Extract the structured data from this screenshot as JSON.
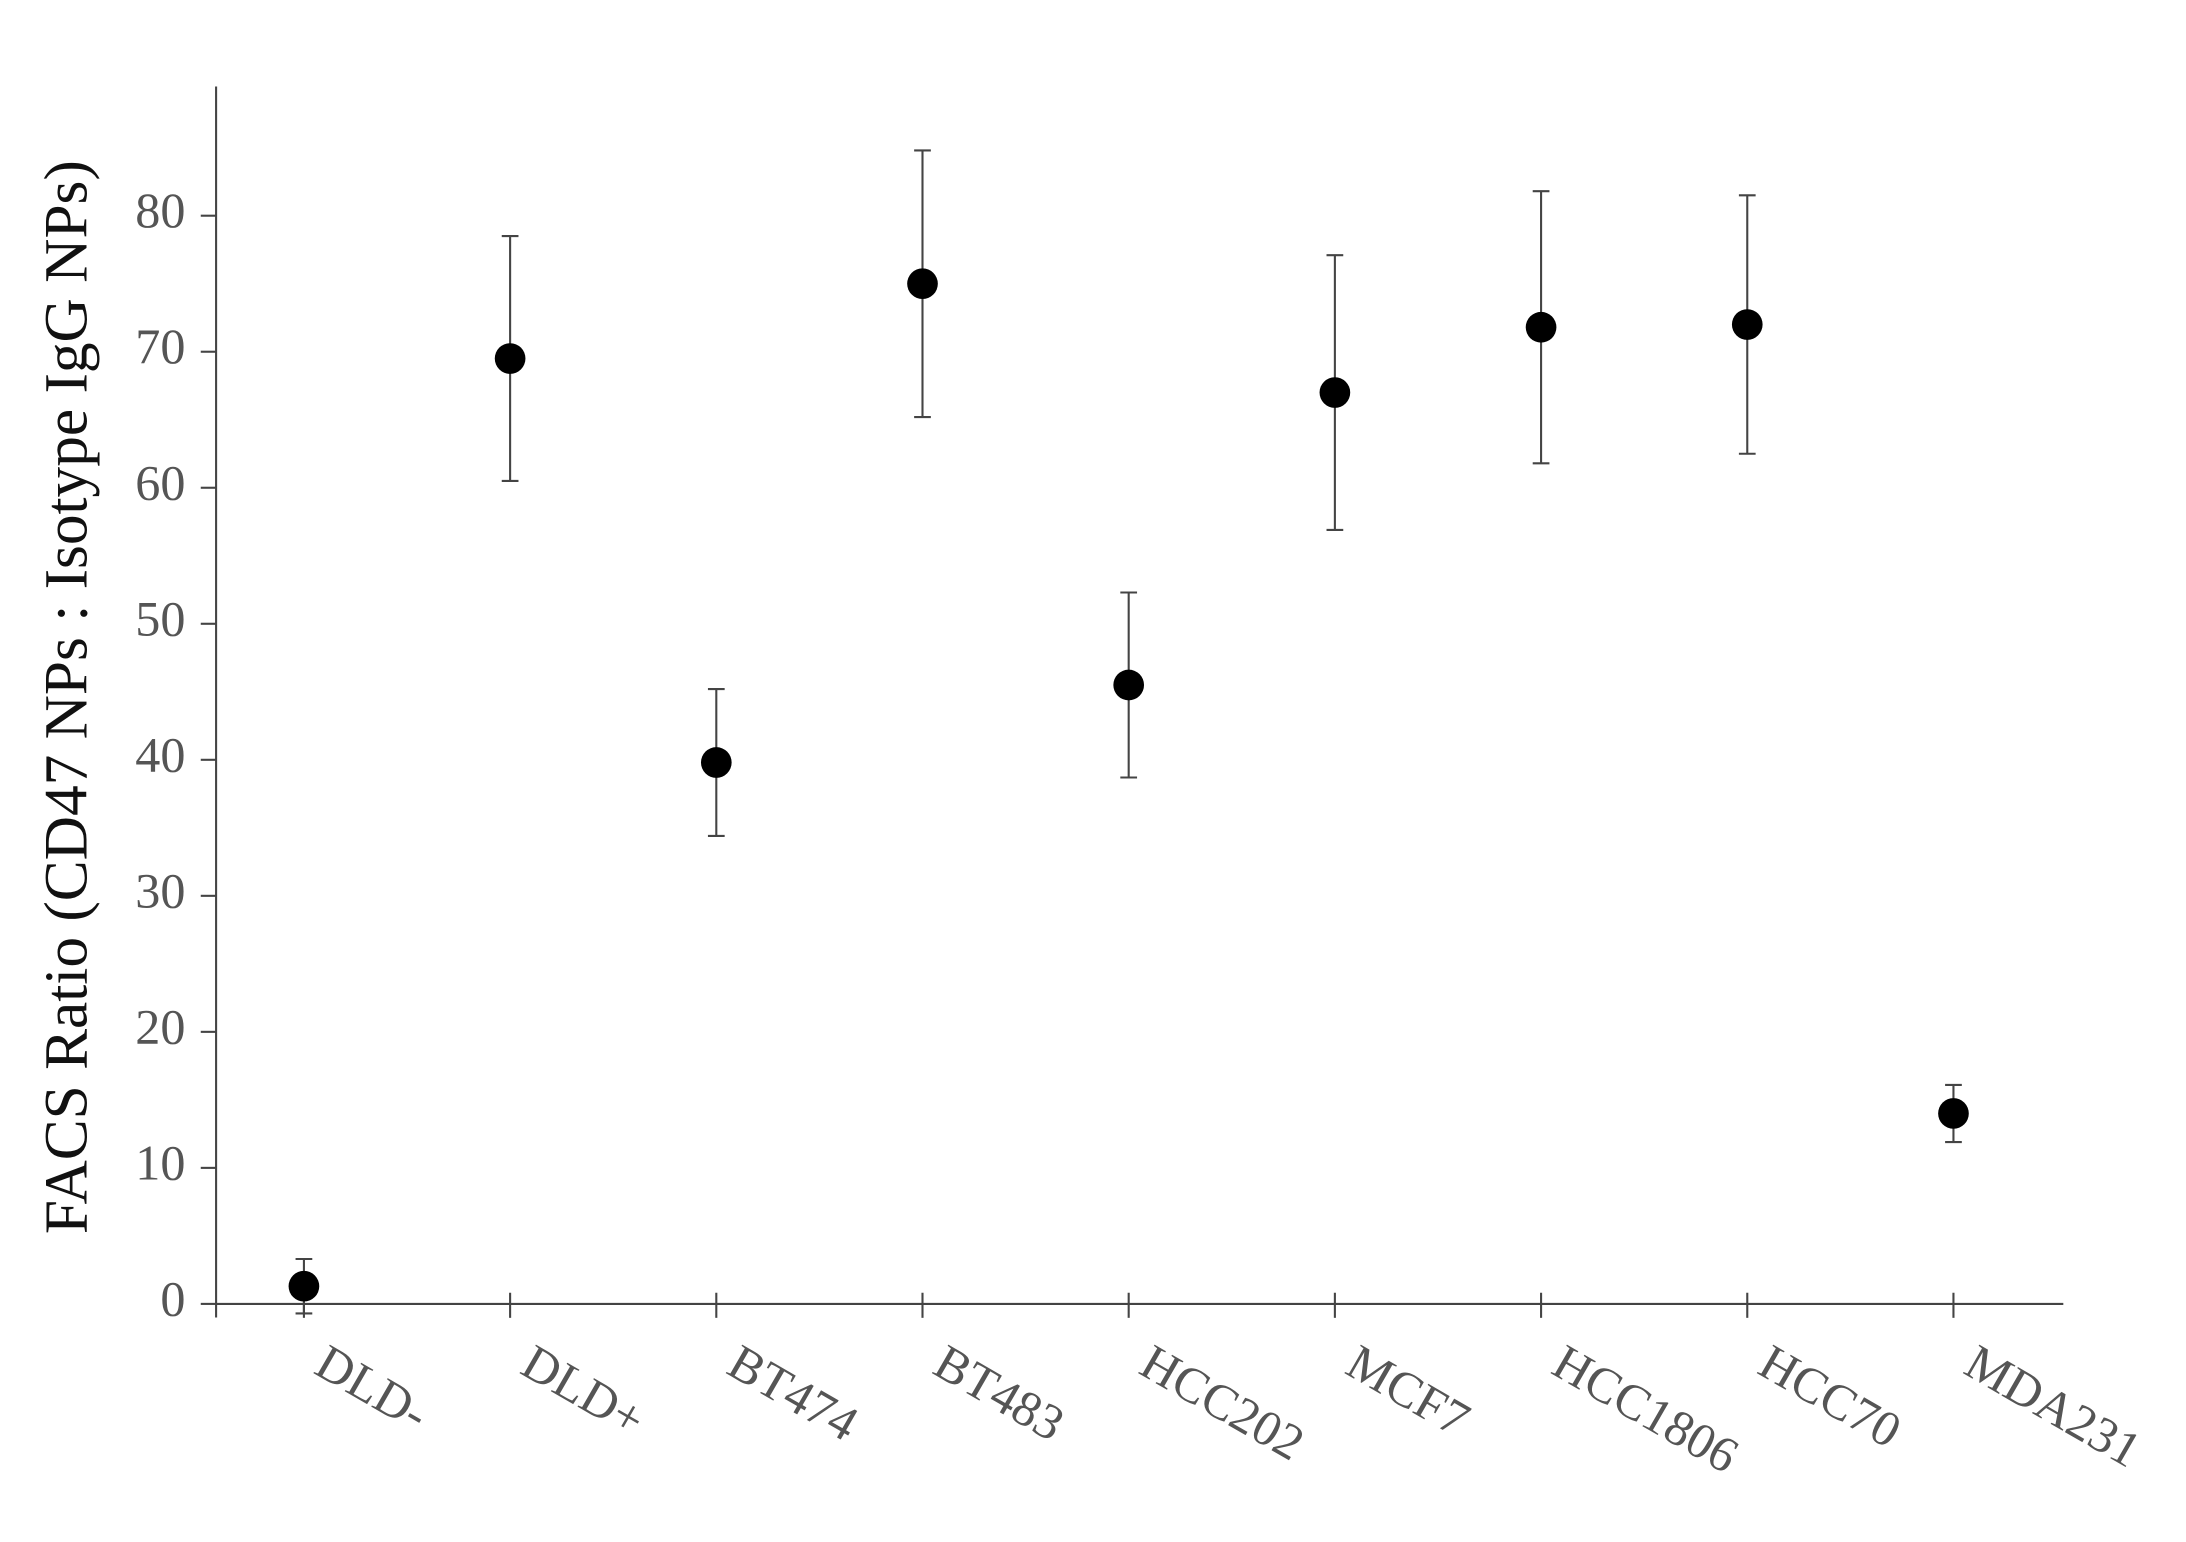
{
  "chart_data": {
    "type": "dot-errorbar",
    "y_label": "FACS Ratio (CD47 NPs : Isotype IgG NPs)",
    "categories": [
      "DLD-",
      "DLD+",
      "BT474",
      "BT483",
      "HCC202",
      "MCF7",
      "HCC1806",
      "HCC70",
      "MDA231"
    ],
    "values": [
      1.3,
      69.5,
      39.8,
      75,
      45.5,
      67,
      71.8,
      72,
      14
    ],
    "errors": [
      2.0,
      9.0,
      5.4,
      9.8,
      6.8,
      10.1,
      10,
      9.5,
      2.1
    ],
    "color": "#000000",
    "ylim": [
      -1,
      89.5
    ],
    "yticks": [
      0,
      10,
      20,
      30,
      40,
      50,
      60,
      70,
      80
    ]
  }
}
